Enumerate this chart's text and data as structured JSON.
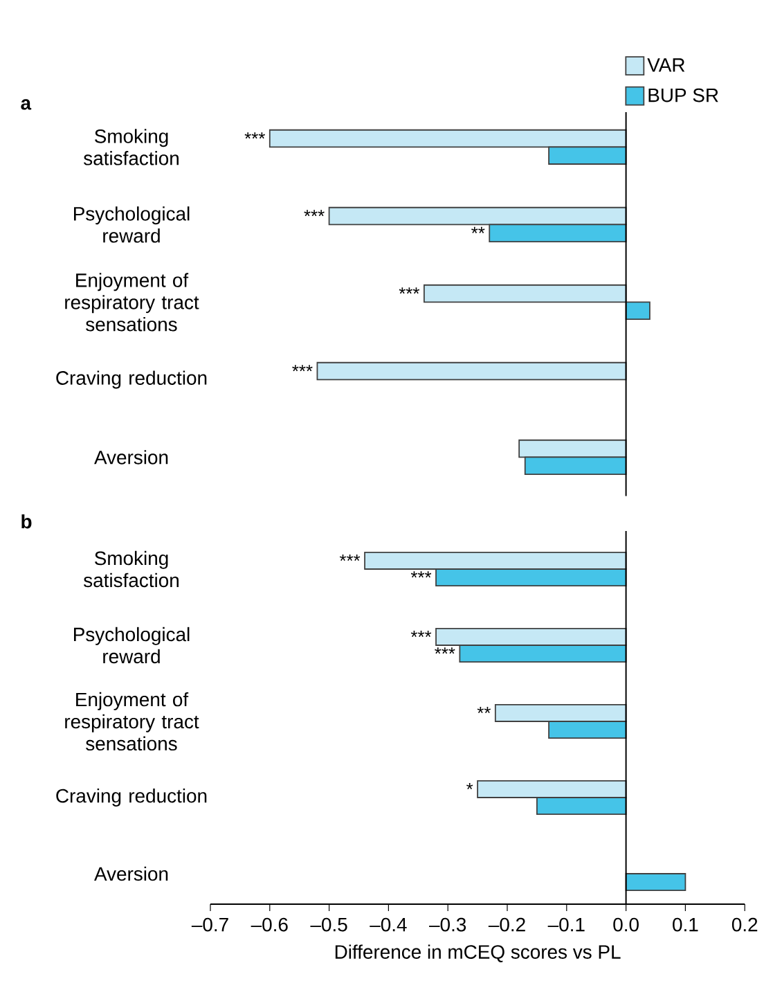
{
  "chart_data": [
    {
      "type": "bar",
      "orientation": "horizontal",
      "title": "a",
      "categories": [
        "Smoking satisfaction",
        "Psychological reward",
        "Enjoyment of respiratory tract sensations",
        "Craving reduction",
        "Aversion"
      ],
      "series": [
        {
          "name": "VAR",
          "color": "#c5e8f5",
          "values": [
            -0.6,
            -0.5,
            -0.34,
            -0.52,
            -0.18
          ]
        },
        {
          "name": "BUP SR",
          "color": "#45c4e8",
          "values": [
            -0.13,
            -0.23,
            0.04,
            null,
            -0.17
          ]
        }
      ],
      "xlim": [
        -0.7,
        0.2
      ],
      "tick_labels": "y",
      "legend": "top right",
      "annotations": [
        {
          "text": "***",
          "x": -0.6,
          "y": "Smoking satisfaction"
        },
        {
          "text": "***",
          "x": -0.5,
          "y": "Psychological reward"
        },
        {
          "text": "**",
          "x": -0.23,
          "y": "Psychological reward"
        },
        {
          "text": "***",
          "x": -0.34,
          "y": "Enjoyment of respiratory tract sensations"
        },
        {
          "text": "***",
          "x": -0.52,
          "y": "Craving reduction"
        }
      ]
    },
    {
      "type": "bar",
      "orientation": "horizontal",
      "title": "b",
      "categories": [
        "Smoking satisfaction",
        "Psychological reward",
        "Enjoyment of respiratory tract sensations",
        "Craving reduction",
        "Aversion"
      ],
      "series": [
        {
          "color": "#c5e8f5",
          "values": [
            -0.44,
            -0.32,
            -0.22,
            -0.25,
            null
          ]
        },
        {
          "color": "#45c4e8",
          "values": [
            -0.32,
            -0.28,
            -0.13,
            -0.15,
            0.1
          ]
        }
      ],
      "xlim": [
        -0.7,
        0.2
      ],
      "xlabel": "Difference in mCEQ scores vs PL",
      "xticks": [
        {
          "value": -0.7,
          "label": "–0.7"
        },
        {
          "value": -0.6,
          "label": "–0.6"
        },
        {
          "value": -0.5,
          "label": "–0.5"
        },
        {
          "value": -0.4,
          "label": "–0.4"
        },
        {
          "value": -0.3,
          "label": "–0.3"
        },
        {
          "value": -0.2,
          "label": "–0.2"
        },
        {
          "value": -0.1,
          "label": "–0.1"
        },
        {
          "value": 0,
          "label": "0.0"
        },
        {
          "value": 0.1,
          "label": "0.1"
        },
        {
          "value": 0.2,
          "label": "0.2"
        }
      ],
      "annotations": [
        {
          "text": "***",
          "x": -0.44,
          "y": "Smoking satisfaction"
        },
        {
          "text": "***",
          "x": -0.32,
          "y": "Smoking satisfaction"
        },
        {
          "text": "***",
          "x": -0.32,
          "y": "Psychological reward"
        },
        {
          "text": "***",
          "x": -0.28,
          "y": "Psychological reward"
        },
        {
          "text": "**",
          "x": -0.22,
          "y": "Enjoyment of respiratory tract sensations"
        },
        {
          "text": "*",
          "x": -0.25,
          "y": "Craving reduction"
        }
      ]
    }
  ]
}
